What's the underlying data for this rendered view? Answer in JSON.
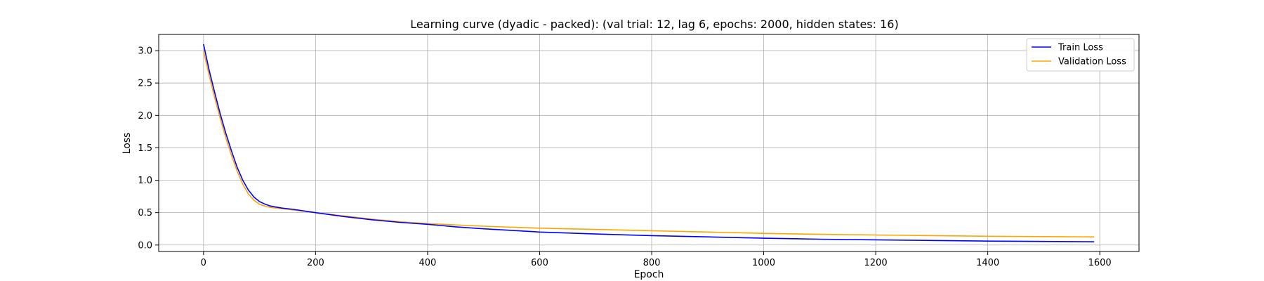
{
  "chart_data": {
    "type": "line",
    "title": "Learning curve (dyadic - packed): (val trial: 12, lag 6, epochs: 2000, hidden states: 16)",
    "xlabel": "Epoch",
    "ylabel": "Loss",
    "xlim": [
      -80,
      1670
    ],
    "ylim": [
      -0.1,
      3.25
    ],
    "xticks": [
      0,
      200,
      400,
      600,
      800,
      1000,
      1200,
      1400,
      1600
    ],
    "yticks": [
      0.0,
      0.5,
      1.0,
      1.5,
      2.0,
      2.5,
      3.0
    ],
    "ytick_labels": [
      "0.0",
      "0.5",
      "1.0",
      "1.5",
      "2.0",
      "2.5",
      "3.0"
    ],
    "grid": true,
    "legend_position": "top-right",
    "series": [
      {
        "name": "Train Loss",
        "color": "#0000ff",
        "x": [
          0,
          10,
          20,
          30,
          40,
          50,
          60,
          70,
          80,
          90,
          100,
          110,
          120,
          140,
          160,
          200,
          250,
          300,
          350,
          400,
          450,
          500,
          600,
          700,
          800,
          900,
          1000,
          1100,
          1200,
          1300,
          1400,
          1500,
          1590
        ],
        "y": [
          3.1,
          2.7,
          2.35,
          2.02,
          1.72,
          1.45,
          1.2,
          1.0,
          0.85,
          0.74,
          0.67,
          0.63,
          0.6,
          0.57,
          0.55,
          0.5,
          0.44,
          0.39,
          0.35,
          0.32,
          0.28,
          0.25,
          0.2,
          0.17,
          0.145,
          0.125,
          0.105,
          0.09,
          0.08,
          0.07,
          0.06,
          0.055,
          0.05
        ]
      },
      {
        "name": "Validation Loss",
        "color": "#ffa500",
        "x": [
          0,
          10,
          20,
          30,
          40,
          50,
          60,
          70,
          80,
          90,
          100,
          110,
          120,
          140,
          160,
          200,
          250,
          300,
          350,
          400,
          450,
          500,
          600,
          700,
          800,
          900,
          1000,
          1100,
          1200,
          1300,
          1400,
          1500,
          1590
        ],
        "y": [
          3.0,
          2.62,
          2.27,
          1.95,
          1.65,
          1.38,
          1.14,
          0.94,
          0.79,
          0.69,
          0.63,
          0.6,
          0.58,
          0.56,
          0.54,
          0.5,
          0.45,
          0.4,
          0.36,
          0.33,
          0.31,
          0.29,
          0.26,
          0.24,
          0.22,
          0.2,
          0.18,
          0.165,
          0.155,
          0.145,
          0.135,
          0.13,
          0.125
        ]
      }
    ]
  }
}
